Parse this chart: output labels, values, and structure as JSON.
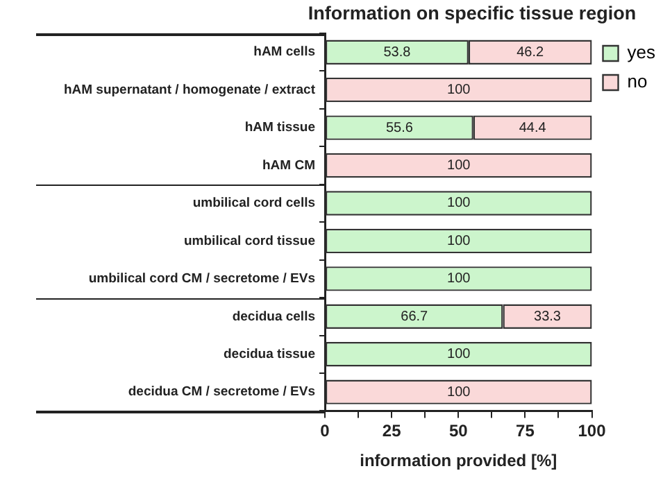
{
  "chart_data": {
    "type": "bar",
    "orientation": "horizontal",
    "stacked": true,
    "title": "Information on specific tissue region",
    "xlabel": "information provided [%]",
    "categories": [
      "hAM cells",
      "hAM supernatant / homogenate / extract",
      "hAM tissue",
      "hAM CM",
      "umbilical cord cells",
      "umbilical cord tissue",
      "umbilical cord CM / secretome / EVs",
      "decidua cells",
      "decidua tissue",
      "decidua CM / secretome / EVs"
    ],
    "series": [
      {
        "name": "yes",
        "color": "#ccf5cc",
        "values": [
          53.8,
          null,
          55.6,
          null,
          100,
          100,
          100,
          66.7,
          100,
          null
        ]
      },
      {
        "name": "no",
        "color": "#fad9d9",
        "values": [
          46.2,
          100,
          44.4,
          100,
          null,
          null,
          null,
          33.3,
          null,
          100
        ]
      }
    ],
    "xlim": [
      0,
      100
    ],
    "xticks": [
      0,
      {
        "value": 12.5,
        "label": null
      },
      25,
      {
        "value": 37.5,
        "label": null
      },
      50,
      {
        "value": 62.5,
        "label": null
      },
      75,
      {
        "value": 87.5,
        "label": null
      },
      100
    ],
    "data_labels": true,
    "grid": false,
    "legend": "top right"
  }
}
